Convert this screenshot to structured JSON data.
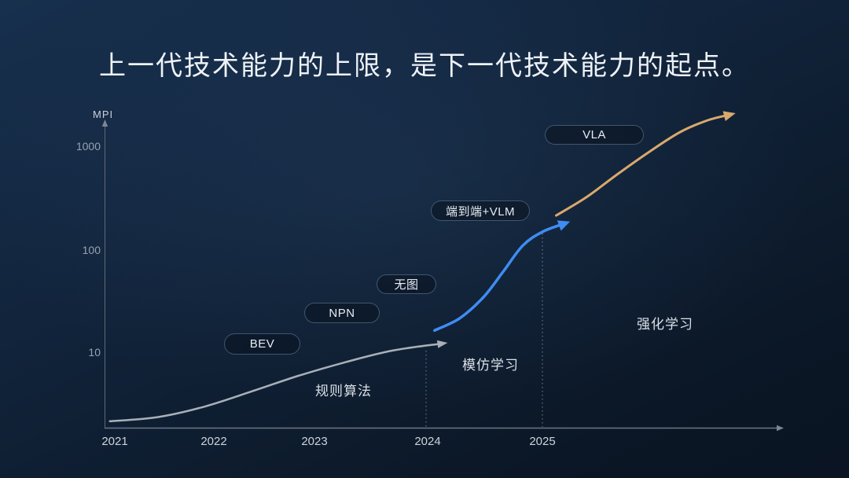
{
  "slide": {
    "title": "上一代技术能力的上限，是下一代技术能力的起点。"
  },
  "chart_data": {
    "type": "line",
    "title": "上一代技术能力的上限，是下一代技术能力的起点。",
    "xlabel": "",
    "ylabel": "MPI",
    "y_scale": "log",
    "y_ticks": [
      10,
      100,
      1000
    ],
    "x_ticks": [
      2021,
      2022,
      2023,
      2024,
      2025
    ],
    "legend": "none",
    "grid": false,
    "series": [
      {
        "name": "规则算法",
        "color": "#a9b0b8",
        "points": [
          [
            2020.95,
            2.1
          ],
          [
            2021.43,
            2.3
          ],
          [
            2021.9,
            2.9
          ],
          [
            2022.38,
            4.1
          ],
          [
            2022.84,
            5.8
          ],
          [
            2023.28,
            7.9
          ],
          [
            2023.69,
            10.2
          ],
          [
            2024.12,
            11.9
          ]
        ]
      },
      {
        "name": "模仿学习",
        "color": "#3f8cf3",
        "points": [
          [
            2024.06,
            16
          ],
          [
            2024.28,
            21
          ],
          [
            2024.49,
            34
          ],
          [
            2024.66,
            60
          ],
          [
            2024.83,
            107
          ],
          [
            2025.0,
            145
          ],
          [
            2025.19,
            174
          ]
        ]
      },
      {
        "name": "强化学习",
        "color": "#d8a96d",
        "points": [
          [
            2025.12,
            209
          ],
          [
            2025.38,
            313
          ],
          [
            2025.65,
            522
          ],
          [
            2025.92,
            851
          ],
          [
            2026.2,
            1349
          ],
          [
            2026.44,
            1754
          ],
          [
            2026.63,
            1986
          ]
        ]
      }
    ],
    "milestone_labels": [
      "BEV",
      "NPN",
      "无图",
      "端到端+VLM",
      "VLA"
    ],
    "annotations": [
      "规则算法",
      "模仿学习",
      "强化学习"
    ],
    "axis_color": "#6c7684",
    "dashed_guide_color": "#8a93a0"
  }
}
